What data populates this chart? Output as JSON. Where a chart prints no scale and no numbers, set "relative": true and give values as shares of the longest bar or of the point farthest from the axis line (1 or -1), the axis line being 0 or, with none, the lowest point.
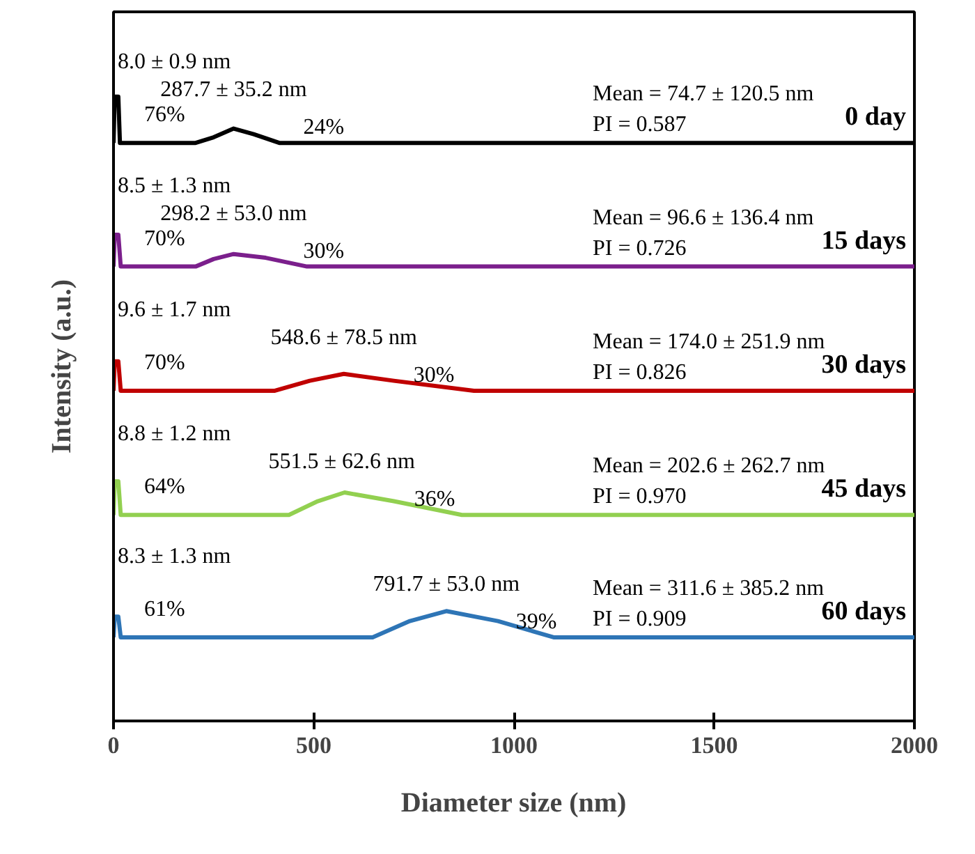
{
  "chart_data": {
    "type": "line",
    "relative": true,
    "xlabel": "Diameter size (nm)",
    "ylabel": "Intensity (a.u.)",
    "xlim": [
      0,
      2000
    ],
    "xticks": [
      0,
      500,
      1000,
      1500,
      2000
    ],
    "grid": false,
    "marker": "none",
    "line_style": "solid",
    "series": [
      {
        "name": "0 day",
        "color": "#000000",
        "x": [
          0,
          3,
          12,
          16,
          205,
          250,
          300,
          350,
          414,
          2000
        ],
        "values": [
          0.926,
          1.0,
          1.0,
          0.926,
          0.926,
          0.935,
          0.949,
          0.94,
          0.926,
          0.926
        ]
      },
      {
        "name": "15 days",
        "color": "#7b1f8c",
        "x": [
          0,
          3,
          12,
          18,
          205,
          250,
          300,
          380,
          483,
          2000
        ],
        "values": [
          0.728,
          0.779,
          0.779,
          0.728,
          0.728,
          0.74,
          0.748,
          0.742,
          0.728,
          0.728
        ]
      },
      {
        "name": "30 days",
        "color": "#c00000",
        "x": [
          0,
          3,
          12,
          18,
          403,
          490,
          575,
          700,
          900,
          2000
        ],
        "values": [
          0.529,
          0.576,
          0.576,
          0.529,
          0.529,
          0.545,
          0.556,
          0.545,
          0.529,
          0.529
        ]
      },
      {
        "name": "45 days",
        "color": "#92d050",
        "x": [
          0,
          3,
          12,
          18,
          438,
          510,
          577,
          700,
          870,
          2000
        ],
        "values": [
          0.33,
          0.384,
          0.384,
          0.33,
          0.33,
          0.352,
          0.366,
          0.352,
          0.33,
          0.33
        ]
      },
      {
        "name": "60 days",
        "color": "#2e75b6",
        "x": [
          0,
          3,
          12,
          18,
          647,
          740,
          831,
          960,
          1099,
          2000
        ],
        "values": [
          0.134,
          0.167,
          0.167,
          0.134,
          0.134,
          0.16,
          0.176,
          0.16,
          0.134,
          0.134
        ]
      }
    ],
    "annotations": [
      "8.0 ± 0.9 nm",
      "76%",
      "287.7 ± 35.2 nm",
      "24%",
      "Mean =  74.7 ± 120.5 nm",
      "PI  = 0.587",
      "8.5 ± 1.3 nm",
      "70%",
      "298.2 ± 53.0 nm",
      "30%",
      "Mean =  96.6  ± 136.4 nm",
      "PI = 0.726",
      "9.6 ± 1.7 nm",
      "70%",
      "548.6 ± 78.5 nm",
      "30%",
      "Mean = 174.0 ± 251.9 nm",
      "PI = 0.826",
      "8.8 ± 1.2 nm",
      "64%",
      "551.5 ± 62.6  nm",
      "36%",
      "Mean = 202.6 ± 262.7 nm",
      "PI = 0.970",
      "8.3 ± 1.3 nm",
      "61%",
      "791.7 ± 53.0 nm",
      "39%",
      "Mean = 311.6 ± 385.2 nm",
      "PI = 0.909"
    ]
  }
}
